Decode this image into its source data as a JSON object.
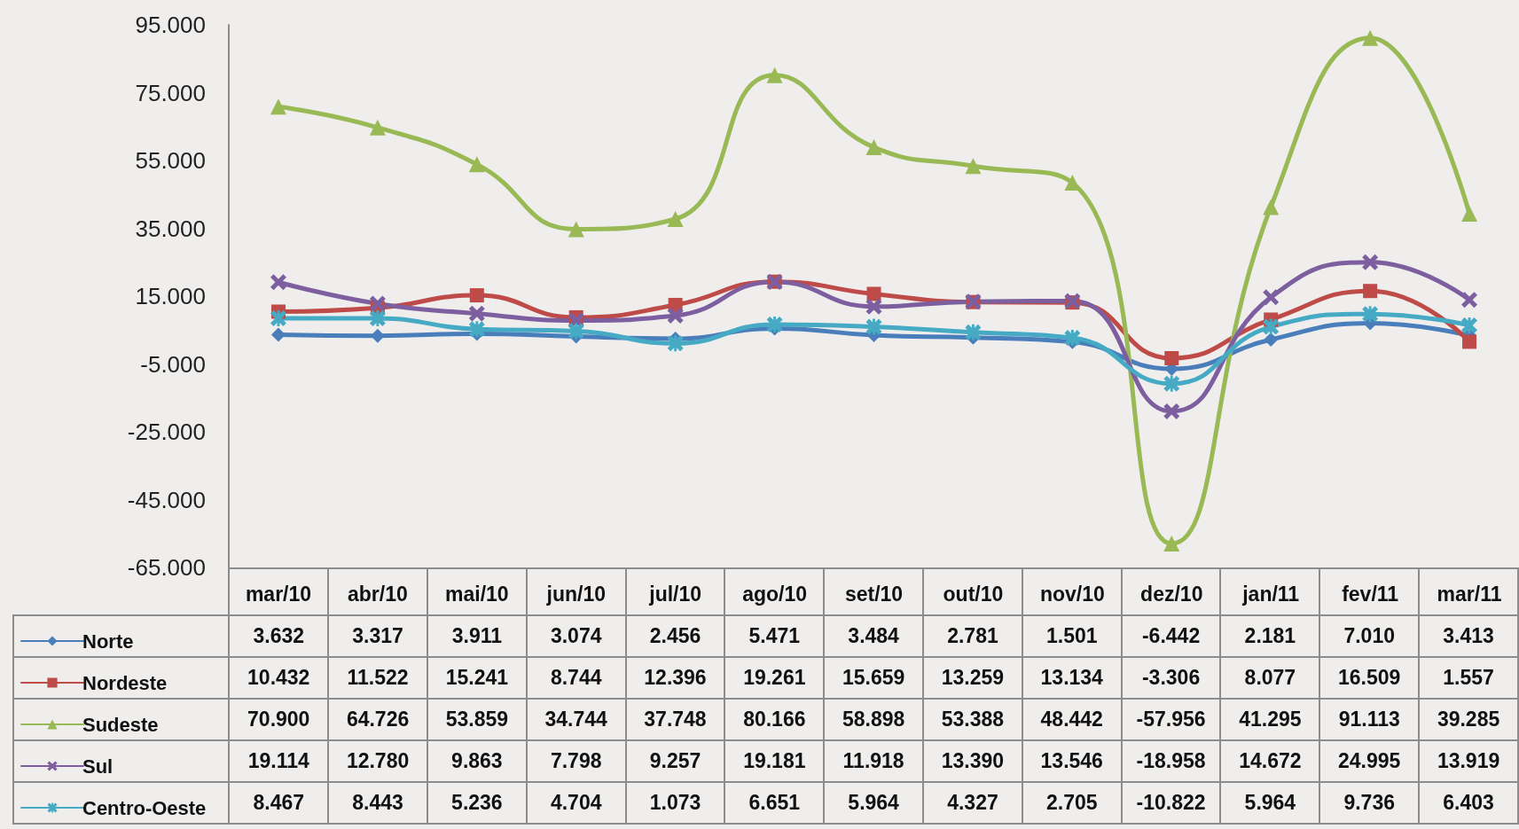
{
  "chart_data": {
    "type": "line",
    "categories": [
      "mar/10",
      "abr/10",
      "mai/10",
      "jun/10",
      "jul/10",
      "ago/10",
      "set/10",
      "out/10",
      "nov/10",
      "dez/10",
      "jan/11",
      "fev/11",
      "mar/11"
    ],
    "ylim": [
      -65000,
      95000
    ],
    "yticks": [
      {
        "value": -65000,
        "label": "-65.000"
      },
      {
        "value": -45000,
        "label": "-45.000"
      },
      {
        "value": -25000,
        "label": "-25.000"
      },
      {
        "value": -5000,
        "label": "-5.000"
      },
      {
        "value": 15000,
        "label": "15.000"
      },
      {
        "value": 35000,
        "label": "35.000"
      },
      {
        "value": 55000,
        "label": "55.000"
      },
      {
        "value": 75000,
        "label": "75.000"
      },
      {
        "value": 95000,
        "label": "95.000"
      }
    ],
    "grid": false,
    "legend": "bottom left",
    "series": [
      {
        "name": "Norte",
        "color": "#4a7ebb",
        "marker": "diamond",
        "values": [
          3632,
          3317,
          3911,
          3074,
          2456,
          5471,
          3484,
          2781,
          1501,
          -6442,
          2181,
          7010,
          3413
        ],
        "value_labels": [
          "3.632",
          "3.317",
          "3.911",
          "3.074",
          "2.456",
          "5.471",
          "3.484",
          "2.781",
          "1.501",
          "-6.442",
          "2.181",
          "7.010",
          "3.413"
        ]
      },
      {
        "name": "Nordeste",
        "color": "#be4b48",
        "marker": "square",
        "values": [
          10432,
          11522,
          15241,
          8744,
          12396,
          19261,
          15659,
          13259,
          13134,
          -3306,
          8077,
          16509,
          1557
        ],
        "value_labels": [
          "10.432",
          "11.522",
          "15.241",
          "8.744",
          "12.396",
          "19.261",
          "15.659",
          "13.259",
          "13.134",
          "-3.306",
          "8.077",
          "16.509",
          "1.557"
        ]
      },
      {
        "name": "Sudeste",
        "color": "#98b954",
        "marker": "triangle",
        "values": [
          70900,
          64726,
          53859,
          34744,
          37748,
          80166,
          58898,
          53388,
          48442,
          -57956,
          41295,
          91113,
          39285
        ],
        "value_labels": [
          "70.900",
          "64.726",
          "53.859",
          "34.744",
          "37.748",
          "80.166",
          "58.898",
          "53.388",
          "48.442",
          "-57.956",
          "41.295",
          "91.113",
          "39.285"
        ]
      },
      {
        "name": "Sul",
        "color": "#7d5fa0",
        "marker": "cross",
        "values": [
          19114,
          12780,
          9863,
          7798,
          9257,
          19181,
          11918,
          13390,
          13546,
          -18958,
          14672,
          24995,
          13919
        ],
        "value_labels": [
          "19.114",
          "12.780",
          "9.863",
          "7.798",
          "9.257",
          "19.181",
          "11.918",
          "13.390",
          "13.546",
          "-18.958",
          "14.672",
          "24.995",
          "13.919"
        ]
      },
      {
        "name": "Centro-Oeste",
        "color": "#46aac5",
        "marker": "star",
        "values": [
          8467,
          8443,
          5236,
          4704,
          1073,
          6651,
          5964,
          4327,
          2705,
          -10822,
          5964,
          9736,
          6403
        ],
        "value_labels": [
          "8.467",
          "8.443",
          "5.236",
          "4.704",
          "1.073",
          "6.651",
          "5.964",
          "4.327",
          "2.705",
          "-10.822",
          "5.964",
          "9.736",
          "6.403"
        ]
      }
    ]
  }
}
